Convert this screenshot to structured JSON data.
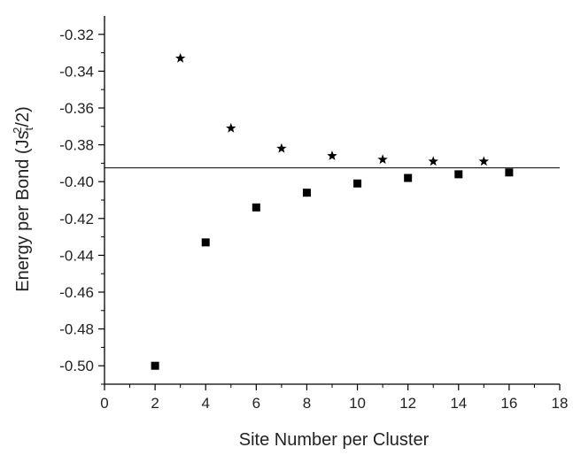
{
  "chart_data": {
    "type": "scatter",
    "xlabel": "Site Number per Cluster",
    "ylabel": {
      "prefix": "Energy per Bond (Js",
      "subscript": "t",
      "superscript": "2",
      "suffix": "/2)"
    },
    "xlim": [
      0,
      18
    ],
    "ylim": [
      -0.51,
      -0.31
    ],
    "x_ticks": [
      0,
      2,
      4,
      6,
      8,
      10,
      12,
      14,
      16,
      18
    ],
    "y_ticks": [
      -0.5,
      -0.48,
      -0.46,
      -0.44,
      -0.42,
      -0.4,
      -0.38,
      -0.36,
      -0.34,
      -0.32
    ],
    "x_tick_labels": [
      "0",
      "2",
      "4",
      "6",
      "8",
      "10",
      "12",
      "14",
      "16",
      "18"
    ],
    "y_tick_labels": [
      "-0.50",
      "-0.48",
      "-0.46",
      "-0.44",
      "-0.42",
      "-0.40",
      "-0.38",
      "-0.36",
      "-0.34",
      "-0.32"
    ],
    "grid": false,
    "series": [
      {
        "marker": "star",
        "x": [
          3,
          5,
          7,
          9,
          11,
          13,
          15
        ],
        "y": [
          -0.333,
          -0.371,
          -0.382,
          -0.386,
          -0.388,
          -0.389,
          -0.389
        ]
      },
      {
        "marker": "square",
        "x": [
          2,
          4,
          6,
          8,
          10,
          12,
          14,
          16
        ],
        "y": [
          -0.5,
          -0.433,
          -0.414,
          -0.406,
          -0.401,
          -0.398,
          -0.396,
          -0.395
        ]
      }
    ],
    "reference_line": {
      "y": -0.3925,
      "x_start": 0,
      "x_end": 18
    }
  }
}
